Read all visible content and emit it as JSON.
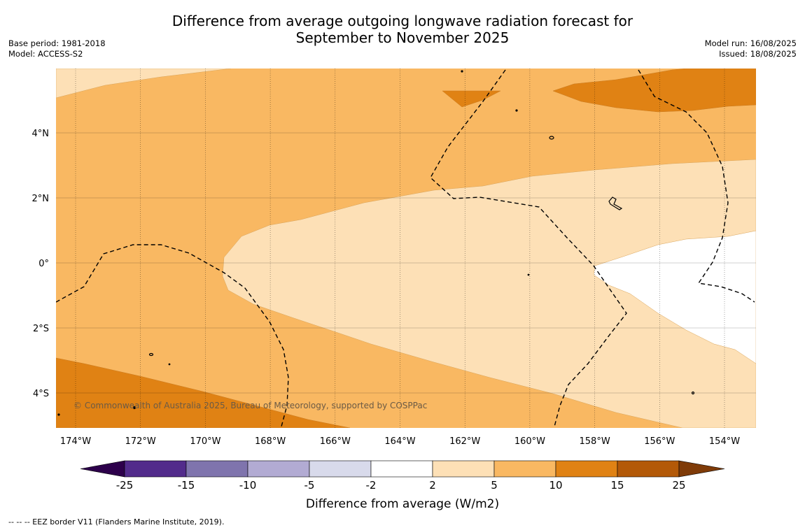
{
  "title_line1": "Difference from average outgoing longwave radiation forecast for",
  "title_line2": "September to November 2025",
  "meta_left": {
    "base_period": "Base period: 1981-2018",
    "model": "Model: ACCESS-S2"
  },
  "meta_right": {
    "model_run": "Model run: 16/08/2025",
    "issued": "Issued: 18/08/2025"
  },
  "map": {
    "lon_labels": [
      "174°W",
      "172°W",
      "170°W",
      "168°W",
      "166°W",
      "164°W",
      "162°W",
      "160°W",
      "158°W",
      "156°W",
      "154°W"
    ],
    "lat_labels": [
      "4°N",
      "2°N",
      "0°",
      "2°S",
      "4°S"
    ],
    "copyright": "© Commonwealth of Australia 2025, Bureau of Meteorology, supported by COSPPac"
  },
  "colorbar": {
    "labels": [
      "-25",
      "-15",
      "-10",
      "-5",
      "-2",
      "2",
      "5",
      "10",
      "15",
      "25"
    ],
    "colors": [
      "#522b8b",
      "#7f74ad",
      "#b2abd3",
      "#d8daeb",
      "#ffffff",
      "#fde0b6",
      "#f9b862",
      "#e08214",
      "#b35908"
    ],
    "under_color": "#2d004b",
    "over_color": "#7f3b08",
    "title": "Difference from average (W/m2)"
  },
  "footer": "--  --  -- EEZ border V11 (Flanders Marine Institute, 2019)."
}
